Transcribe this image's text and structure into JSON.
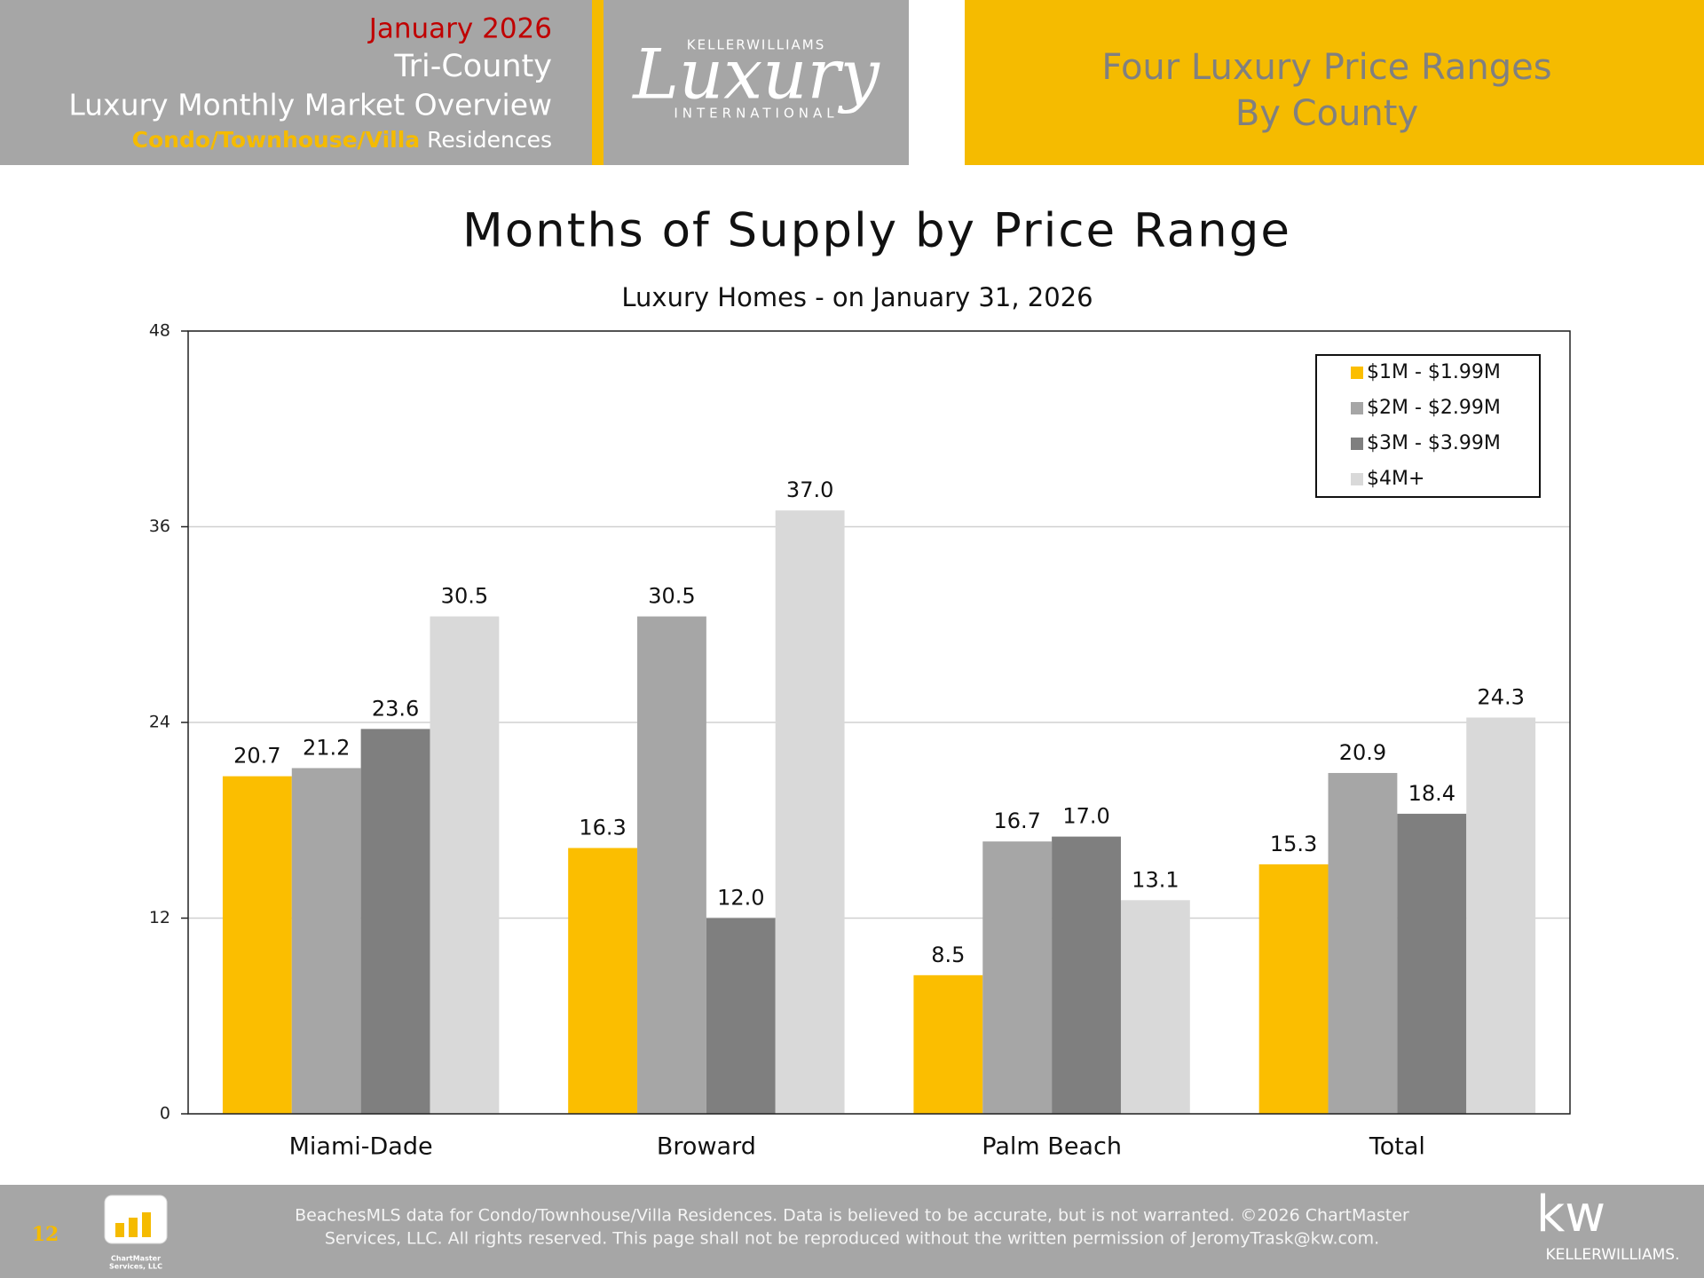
{
  "header": {
    "date": "January 2026",
    "region": "Tri-County",
    "title": "Luxury Monthly Market Overview",
    "property_type": "Condo/Townhouse/Villa",
    "property_suffix": "Residences"
  },
  "logo": {
    "brand": "KELLERWILLIAMS",
    "word": "Luxury",
    "sub": "INTERNATIONAL"
  },
  "banner": {
    "line1": "Four Luxury Price Ranges",
    "line2": "By County"
  },
  "chart_data": {
    "type": "bar",
    "title": "Months of Supply by Price Range",
    "subtitle": "Luxury Homes - on January 31, 2026",
    "categories": [
      "Miami-Dade",
      "Broward",
      "Palm Beach",
      "Total"
    ],
    "series": [
      {
        "name": "$1M - $1.99M",
        "color": "#fbbe00",
        "values": [
          20.7,
          16.3,
          8.5,
          15.3
        ],
        "value_labels": [
          "20.7",
          "16.3",
          "8.5",
          "15.3"
        ]
      },
      {
        "name": "$2M - $2.99M",
        "color": "#a6a6a6",
        "values": [
          21.2,
          30.5,
          16.7,
          20.9
        ],
        "value_labels": [
          "21.2",
          "30.5",
          "16.7",
          "20.9"
        ]
      },
      {
        "name": "$3M - $3.99M",
        "color": "#7f7f7f",
        "values": [
          23.6,
          12.0,
          17.0,
          18.4
        ],
        "value_labels": [
          "23.6",
          "12.0",
          "17.0",
          "18.4"
        ]
      },
      {
        "name": "$4M+",
        "color": "#d9d9d9",
        "values": [
          30.5,
          37.0,
          13.1,
          24.3
        ],
        "value_labels": [
          "30.5",
          "37.0",
          "13.1",
          "24.3"
        ]
      }
    ],
    "ylim": [
      0,
      48
    ],
    "yticks": [
      0,
      12,
      24,
      36,
      48
    ],
    "grid": true,
    "legend": "upper right"
  },
  "footer": {
    "page_number": "12",
    "disclaimer_line1": "BeachesMLS data for Condo/Townhouse/Villa Residences.  Data is believed to be accurate, but is not warranted.   ©2026  ChartMaster",
    "disclaimer_line2": "Services, LLC.  All rights reserved. This page shall not be reproduced without the written permission of JeromyTrask@kw.com.",
    "chartmaster_name": "ChartMaster",
    "chartmaster_company": "Services, LLC",
    "kw_mark": "kw",
    "kw_name": "KELLERWILLIAMS."
  }
}
